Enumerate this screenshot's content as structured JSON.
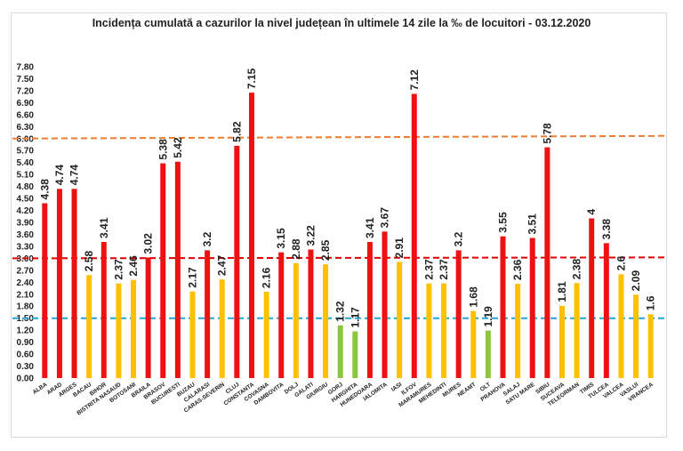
{
  "chart_data": {
    "type": "bar",
    "title": "Incidența cumulată a cazurilor la nivel județean în ultimele 14 zile la ‰ de locuitori - 03.12.2020",
    "xlabel": "",
    "ylabel": "",
    "ylim": [
      0,
      7.8
    ],
    "yticks": [
      "0.00",
      "0.30",
      "0.60",
      "0.90",
      "1.20",
      "1.50",
      "1.80",
      "2.10",
      "2.40",
      "2.70",
      "3.00",
      "3.30",
      "3.60",
      "3.90",
      "4.20",
      "4.50",
      "4.80",
      "5.10",
      "5.40",
      "5.70",
      "6.00",
      "6.30",
      "6.60",
      "6.90",
      "7.20",
      "7.50",
      "7.80"
    ],
    "grid": false,
    "legend": "none",
    "categories": [
      "ALBA",
      "ARAD",
      "ARGES",
      "BACAU",
      "BIHOR",
      "BISTRITA NASAUD",
      "BOTOSANI",
      "BRAILA",
      "BRASOV",
      "BUCURESTI",
      "BUZAU",
      "CALARASI",
      "CARAS-SEVERIN",
      "CLUJ",
      "CONSTANTA",
      "COVASNA",
      "DAMBOVITA",
      "DOLJ",
      "GALATI",
      "GIURGIU",
      "GORJ",
      "HARGHITA",
      "HUNEDOARA",
      "IALOMITA",
      "IASI",
      "ILFOV",
      "MARAMURES",
      "MEHEDINTI",
      "MURES",
      "NEAMT",
      "OLT",
      "PRAHOVA",
      "SALAJ",
      "SATU MARE",
      "SIBIU",
      "SUCEAVA",
      "TELEORMAN",
      "TIMIS",
      "TULCEA",
      "VALCEA",
      "VASLUI",
      "VRANCEA"
    ],
    "values": [
      4.38,
      4.74,
      4.74,
      2.58,
      3.41,
      2.37,
      2.46,
      3.02,
      5.38,
      5.42,
      2.17,
      3.2,
      2.47,
      5.82,
      7.15,
      2.16,
      3.15,
      2.88,
      3.22,
      2.85,
      1.32,
      1.17,
      3.41,
      3.67,
      2.91,
      7.12,
      2.37,
      2.37,
      3.2,
      1.68,
      1.19,
      3.55,
      2.36,
      3.51,
      5.78,
      1.81,
      2.38,
      4,
      3.38,
      2.6,
      2.09,
      1.6
    ],
    "data_labels": [
      "4.38",
      "4.74",
      "4.74",
      "2.58",
      "3.41",
      "2.37",
      "2.46",
      "3.02",
      "5.38",
      "5.42",
      "2.17",
      "3.2",
      "2.47",
      "5.82",
      "7.15",
      "2.16",
      "3.15",
      "2.88",
      "3.22",
      "2.85",
      "1.32",
      "1.17",
      "3.41",
      "3.67",
      "2.91",
      "7.12",
      "2.37",
      "2.37",
      "3.2",
      "1.68",
      "1.19",
      "3.55",
      "2.36",
      "3.51",
      "5.78",
      "1.81",
      "2.38",
      "4",
      "3.38",
      "2.6",
      "2.09",
      "1.6"
    ],
    "reference_lines": [
      {
        "value": 6.0,
        "color": "#ed7d31"
      },
      {
        "value": 3.0,
        "color": "#e00000"
      },
      {
        "value": 1.5,
        "color": "#21a8d8"
      }
    ],
    "colors": {
      "high": "#ee1111",
      "medium": "#ffc000",
      "low": "#8cc63f"
    }
  }
}
